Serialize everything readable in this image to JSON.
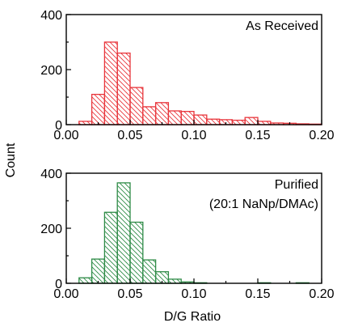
{
  "figure": {
    "ylabel": "Count",
    "xlabel": "D/G Ratio"
  },
  "chart_data": [
    {
      "type": "bar",
      "panel": "top",
      "annotation": [
        "As Received"
      ],
      "bin_width": 0.01,
      "bin_starts": [
        0.0,
        0.01,
        0.02,
        0.03,
        0.04,
        0.05,
        0.06,
        0.07,
        0.08,
        0.09,
        0.1,
        0.11,
        0.12,
        0.13,
        0.14,
        0.15,
        0.16,
        0.17,
        0.18,
        0.19
      ],
      "values": [
        0,
        12,
        110,
        300,
        260,
        135,
        65,
        80,
        50,
        48,
        35,
        20,
        18,
        16,
        26,
        12,
        6,
        5,
        3,
        2
      ],
      "xlim": [
        0.0,
        0.2
      ],
      "ylim": [
        0,
        400
      ],
      "xticks": [
        "0.00",
        "0.05",
        "0.10",
        "0.15",
        "0.20"
      ],
      "yticks": [
        "0",
        "200",
        "400"
      ],
      "color": "#e8353b"
    },
    {
      "type": "bar",
      "panel": "bottom",
      "annotation": [
        "Purified",
        "(20:1 NaNp/DMAc)"
      ],
      "bin_width": 0.01,
      "bin_starts": [
        0.0,
        0.01,
        0.02,
        0.03,
        0.04,
        0.05,
        0.06,
        0.07,
        0.08,
        0.09,
        0.1,
        0.11,
        0.12,
        0.13,
        0.14,
        0.15,
        0.16,
        0.17,
        0.18,
        0.19
      ],
      "values": [
        0,
        20,
        88,
        258,
        365,
        222,
        85,
        42,
        15,
        5,
        2,
        0,
        0,
        0,
        0,
        2,
        0,
        0,
        2,
        0
      ],
      "xlim": [
        0.0,
        0.2
      ],
      "ylim": [
        0,
        400
      ],
      "xticks": [
        "0.00",
        "0.05",
        "0.10",
        "0.15",
        "0.20"
      ],
      "yticks": [
        "0",
        "200",
        "400"
      ],
      "color": "#2e8b46"
    }
  ]
}
